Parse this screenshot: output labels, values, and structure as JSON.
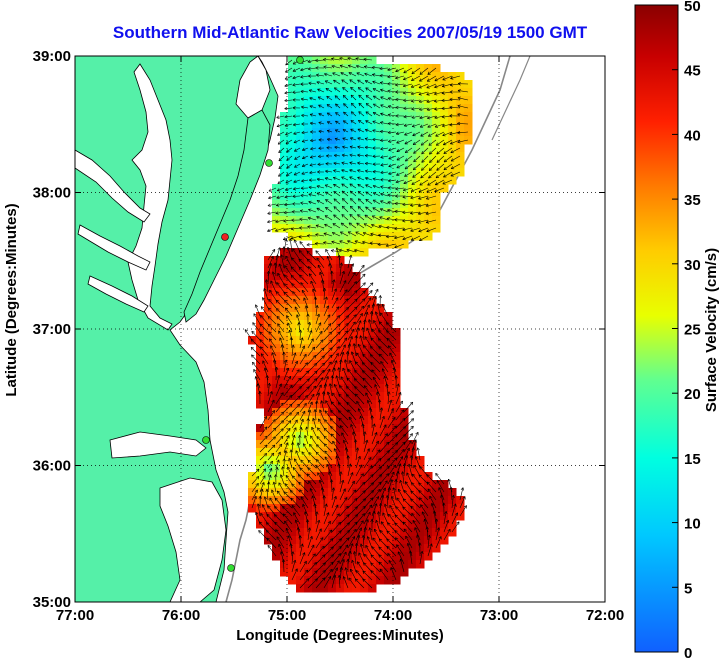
{
  "title": "Southern Mid-Atlantic Raw Velocities 2007/05/19 1500 GMT",
  "x_axis": {
    "label": "Longitude (Degrees:Minutes)",
    "ticks": [
      "77:00",
      "76:00",
      "75:00",
      "74:00",
      "73:00",
      "72:00"
    ]
  },
  "y_axis": {
    "label": "Latitude (Degrees:Minutes)",
    "ticks": [
      "39:00",
      "38:00",
      "37:00",
      "36:00",
      "35:00"
    ]
  },
  "colorbar": {
    "label": "Surface Velocity (cm/s)",
    "ticks": [
      "50",
      "45",
      "40",
      "35",
      "30",
      "25",
      "20",
      "15",
      "10",
      "5",
      "0"
    ],
    "min": 0,
    "max": 50
  },
  "colors": {
    "land": "#55f0a8",
    "title": "#1010ee",
    "station_green": "#33dd33",
    "station_red": "#ee2222"
  },
  "grid": "dotted",
  "chart_data": {
    "type": "heatmap",
    "title": "Southern Mid-Atlantic Raw Velocities 2007/05/19 1500 GMT",
    "xlabel": "Longitude (Degrees:Minutes)",
    "ylabel": "Latitude (Degrees:Minutes)",
    "xlim": [
      -77,
      -72
    ],
    "ylim": [
      35,
      39
    ],
    "color_range": [
      0,
      50
    ],
    "color_units": "cm/s"
  }
}
